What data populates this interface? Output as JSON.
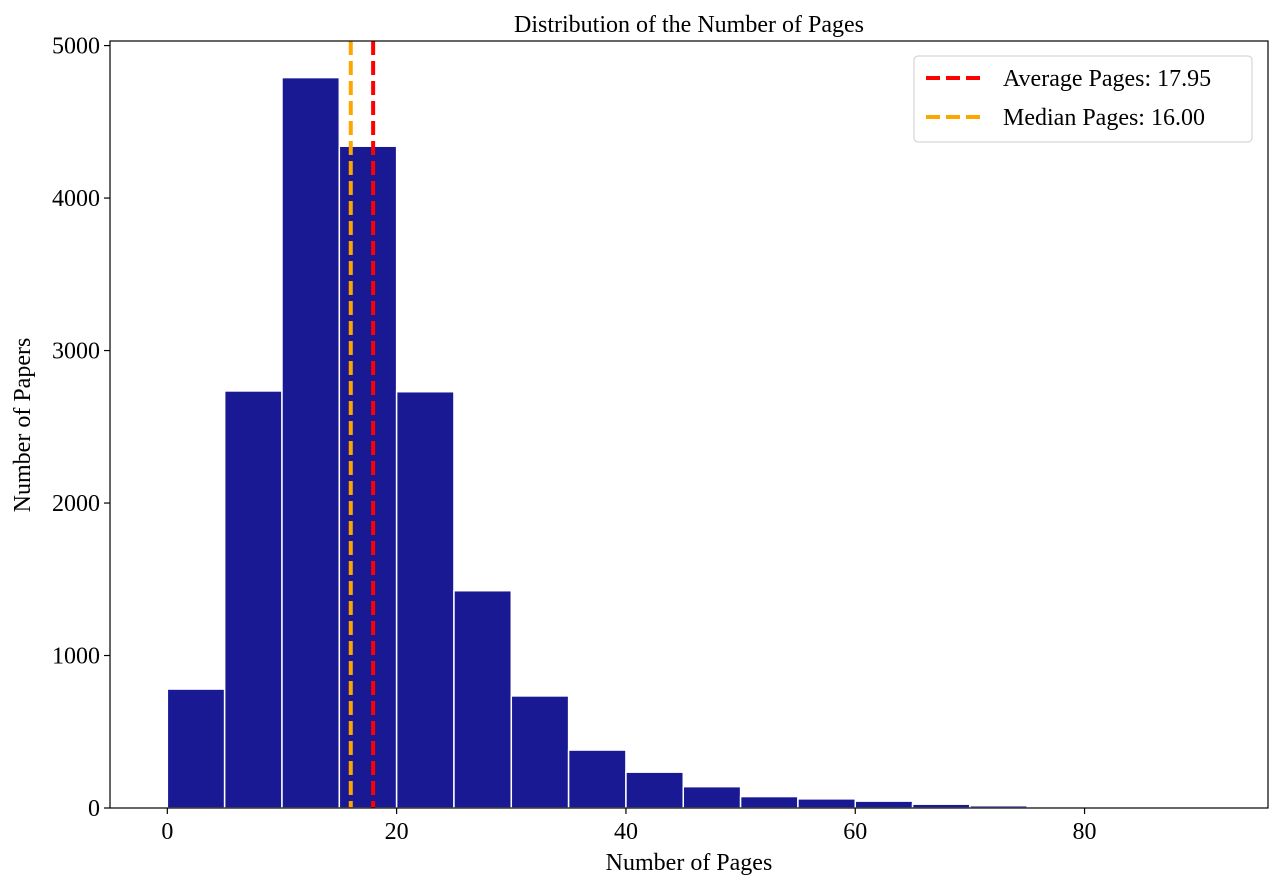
{
  "chart_data": {
    "type": "bar",
    "title": "Distribution of the Number of Pages",
    "xlabel": "Number of Pages",
    "ylabel": "Number of Papers",
    "xlim": [
      -5,
      96
    ],
    "ylim": [
      0,
      5030
    ],
    "xticks": [
      0,
      20,
      40,
      60,
      80
    ],
    "yticks": [
      0,
      1000,
      2000,
      3000,
      4000,
      5000
    ],
    "bin_width": 5,
    "bin_edges": [
      0,
      5,
      10,
      15,
      20,
      25,
      30,
      35,
      40,
      45,
      50,
      55,
      60,
      65,
      70,
      75,
      80,
      85,
      90,
      95
    ],
    "values": [
      780,
      2735,
      4790,
      4340,
      2730,
      1425,
      735,
      380,
      235,
      140,
      75,
      60,
      45,
      25,
      15,
      10,
      5,
      4,
      3
    ],
    "bar_color": "#191994",
    "bar_edge_color": "#ffffff",
    "grid": false,
    "reference_lines": [
      {
        "name": "average",
        "label": "Average Pages: 17.95",
        "x": 17.95,
        "color": "#ff0000",
        "style": "dashed"
      },
      {
        "name": "median",
        "label": "Median Pages: 16.00",
        "x": 16.0,
        "color": "#ffa500",
        "style": "dashed"
      }
    ],
    "legend_position": "top-right"
  }
}
